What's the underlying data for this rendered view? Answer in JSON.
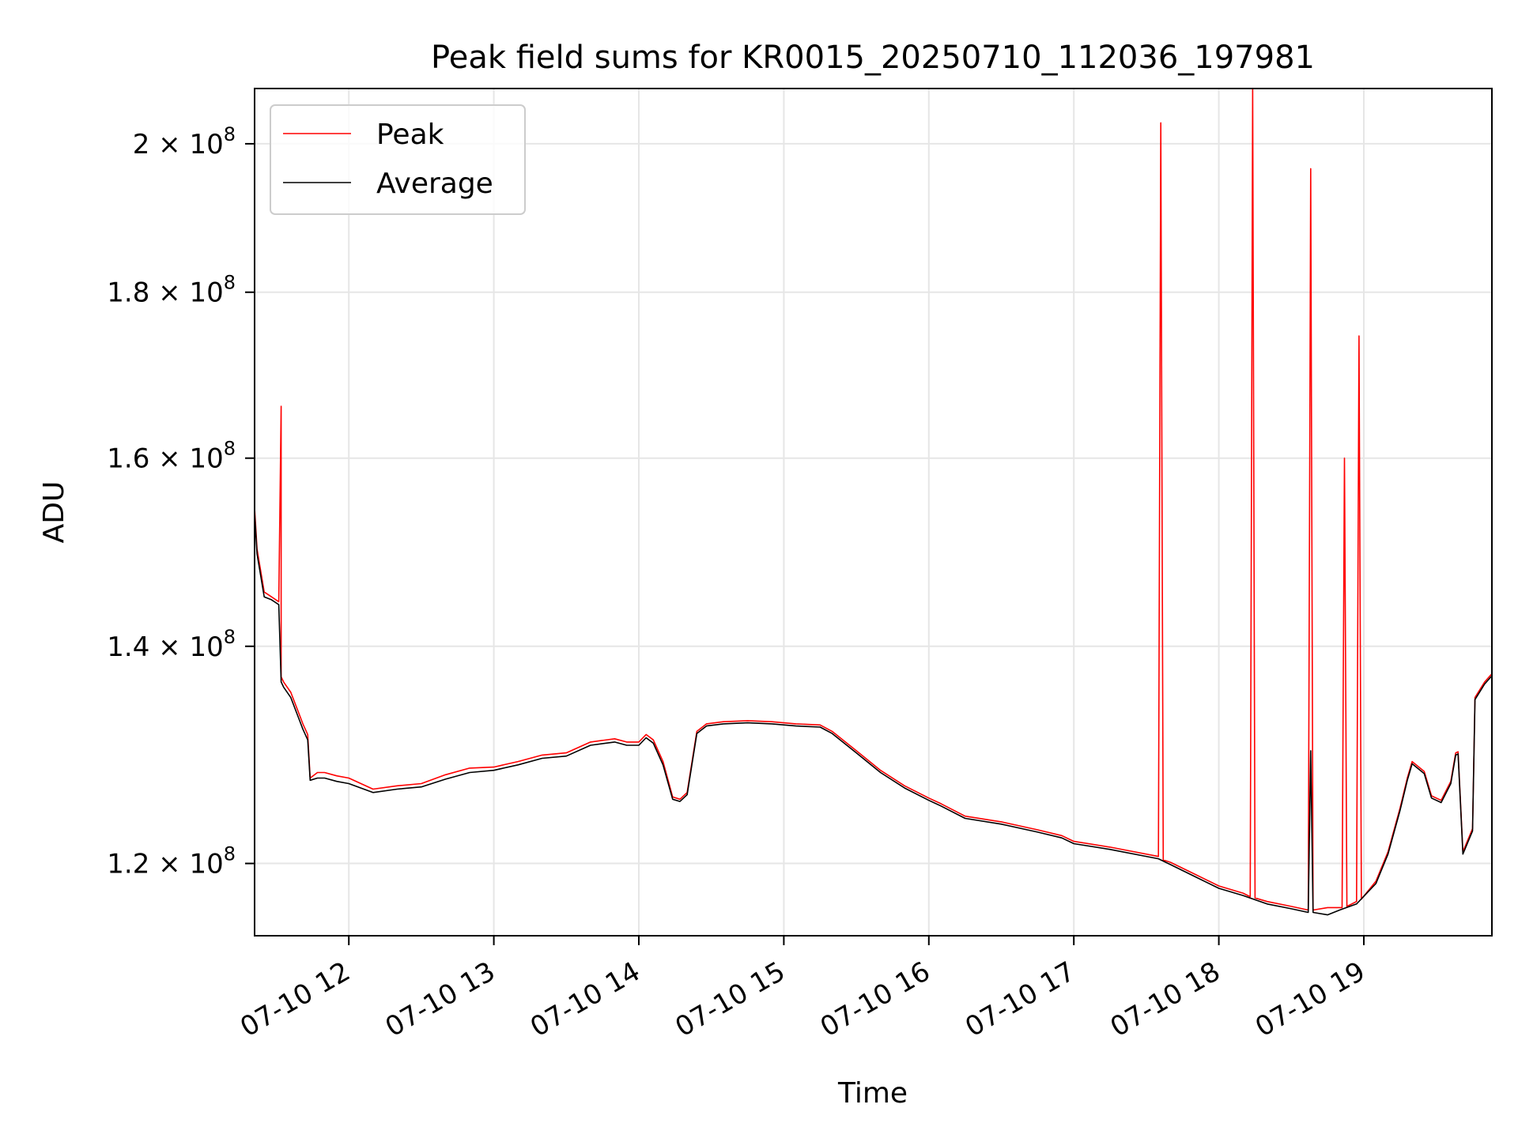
{
  "chart_data": {
    "type": "line",
    "title": "Peak field sums for KR0015_20250710_112036_197981",
    "xlabel": "Time",
    "ylabel": "ADU",
    "y_scale": "log",
    "grid": true,
    "legend_placement": "top-left",
    "xlim": [
      "2025-07-10 11:21",
      "2025-07-10 19:53"
    ],
    "ylim": [
      114000000,
      208000000
    ],
    "x_ticks": [
      {
        "value": "2025-07-10 12:00",
        "label": "07-10 12"
      },
      {
        "value": "2025-07-10 13:00",
        "label": "07-10 13"
      },
      {
        "value": "2025-07-10 14:00",
        "label": "07-10 14"
      },
      {
        "value": "2025-07-10 15:00",
        "label": "07-10 15"
      },
      {
        "value": "2025-07-10 16:00",
        "label": "07-10 16"
      },
      {
        "value": "2025-07-10 17:00",
        "label": "07-10 17"
      },
      {
        "value": "2025-07-10 18:00",
        "label": "07-10 18"
      },
      {
        "value": "2025-07-10 19:00",
        "label": "07-10 19"
      }
    ],
    "y_ticks": [
      {
        "value": 120000000,
        "mantissa": "1.2",
        "exponent": "8"
      },
      {
        "value": 140000000,
        "mantissa": "1.4",
        "exponent": "8"
      },
      {
        "value": 160000000,
        "mantissa": "1.6",
        "exponent": "8"
      },
      {
        "value": 180000000,
        "mantissa": "1.8",
        "exponent": "8"
      },
      {
        "value": 200000000,
        "mantissa": "2",
        "exponent": "8"
      }
    ],
    "series": [
      {
        "name": "Peak",
        "color": "#ff0000",
        "x": [
          "2025-07-10 11:21",
          "2025-07-10 11:22",
          "2025-07-10 11:25",
          "2025-07-10 11:28",
          "2025-07-10 11:31",
          "2025-07-10 11:32",
          "2025-07-10 11:32",
          "2025-07-10 11:33",
          "2025-07-10 11:36",
          "2025-07-10 11:41",
          "2025-07-10 11:43",
          "2025-07-10 11:44",
          "2025-07-10 11:47",
          "2025-07-10 11:50",
          "2025-07-10 11:55",
          "2025-07-10 12:00",
          "2025-07-10 12:05",
          "2025-07-10 12:10",
          "2025-07-10 12:20",
          "2025-07-10 12:30",
          "2025-07-10 12:40",
          "2025-07-10 12:50",
          "2025-07-10 13:00",
          "2025-07-10 13:10",
          "2025-07-10 13:20",
          "2025-07-10 13:30",
          "2025-07-10 13:40",
          "2025-07-10 13:50",
          "2025-07-10 13:55",
          "2025-07-10 14:00",
          "2025-07-10 14:03",
          "2025-07-10 14:06",
          "2025-07-10 14:10",
          "2025-07-10 14:14",
          "2025-07-10 14:17",
          "2025-07-10 14:20",
          "2025-07-10 14:24",
          "2025-07-10 14:28",
          "2025-07-10 14:35",
          "2025-07-10 14:45",
          "2025-07-10 14:55",
          "2025-07-10 15:05",
          "2025-07-10 15:15",
          "2025-07-10 15:20",
          "2025-07-10 15:30",
          "2025-07-10 15:40",
          "2025-07-10 15:50",
          "2025-07-10 16:00",
          "2025-07-10 16:05",
          "2025-07-10 16:15",
          "2025-07-10 16:30",
          "2025-07-10 16:45",
          "2025-07-10 16:55",
          "2025-07-10 17:00",
          "2025-07-10 17:15",
          "2025-07-10 17:35",
          "2025-07-10 17:36",
          "2025-07-10 17:37",
          "2025-07-10 17:40",
          "2025-07-10 17:50",
          "2025-07-10 18:00",
          "2025-07-10 18:10",
          "2025-07-10 18:13",
          "2025-07-10 18:14",
          "2025-07-10 18:15",
          "2025-07-10 18:20",
          "2025-07-10 18:30",
          "2025-07-10 18:37",
          "2025-07-10 18:38",
          "2025-07-10 18:39",
          "2025-07-10 18:45",
          "2025-07-10 18:51",
          "2025-07-10 18:52",
          "2025-07-10 18:53",
          "2025-07-10 18:57",
          "2025-07-10 18:58",
          "2025-07-10 18:59",
          "2025-07-10 19:05",
          "2025-07-10 19:10",
          "2025-07-10 19:15",
          "2025-07-10 19:18",
          "2025-07-10 19:20",
          "2025-07-10 19:25",
          "2025-07-10 19:28",
          "2025-07-10 19:32",
          "2025-07-10 19:36",
          "2025-07-10 19:38",
          "2025-07-10 19:39",
          "2025-07-10 19:41",
          "2025-07-10 19:45",
          "2025-07-10 19:46",
          "2025-07-10 19:50",
          "2025-07-10 19:53"
        ],
        "y": [
          154500000,
          150000000,
          145500000,
          145000000,
          144500000,
          166000000,
          137000000,
          136500000,
          135500000,
          132500000,
          131500000,
          127500000,
          128000000,
          128000000,
          127700000,
          127500000,
          127000000,
          126500000,
          126800000,
          127000000,
          127800000,
          128400000,
          128500000,
          129000000,
          129600000,
          129800000,
          130800000,
          131100000,
          130800000,
          130800000,
          131500000,
          131000000,
          129000000,
          125800000,
          125600000,
          126200000,
          131800000,
          132500000,
          132700000,
          132800000,
          132700000,
          132500000,
          132400000,
          131800000,
          130000000,
          128200000,
          126800000,
          125700000,
          125200000,
          124100000,
          123600000,
          122900000,
          122400000,
          121900000,
          121400000,
          120600000,
          203000000,
          120300000,
          120100000,
          119100000,
          118100000,
          117500000,
          117200000,
          208000000,
          117100000,
          116800000,
          116400000,
          116100000,
          196500000,
          116100000,
          116300000,
          116300000,
          160000000,
          116400000,
          116800000,
          174500000,
          117000000,
          118500000,
          121000000,
          124800000,
          127500000,
          129000000,
          128100000,
          125900000,
          125500000,
          127200000,
          129800000,
          129900000,
          121000000,
          123000000,
          135000000,
          136500000,
          137300000
        ]
      },
      {
        "name": "Average",
        "color": "#000000",
        "x": [
          "2025-07-10 11:21",
          "2025-07-10 11:22",
          "2025-07-10 11:25",
          "2025-07-10 11:28",
          "2025-07-10 11:31",
          "2025-07-10 11:32",
          "2025-07-10 11:33",
          "2025-07-10 11:36",
          "2025-07-10 11:41",
          "2025-07-10 11:43",
          "2025-07-10 11:44",
          "2025-07-10 11:47",
          "2025-07-10 11:50",
          "2025-07-10 11:55",
          "2025-07-10 12:00",
          "2025-07-10 12:05",
          "2025-07-10 12:10",
          "2025-07-10 12:20",
          "2025-07-10 12:30",
          "2025-07-10 12:40",
          "2025-07-10 12:50",
          "2025-07-10 13:00",
          "2025-07-10 13:10",
          "2025-07-10 13:20",
          "2025-07-10 13:30",
          "2025-07-10 13:40",
          "2025-07-10 13:50",
          "2025-07-10 13:55",
          "2025-07-10 14:00",
          "2025-07-10 14:03",
          "2025-07-10 14:06",
          "2025-07-10 14:10",
          "2025-07-10 14:14",
          "2025-07-10 14:17",
          "2025-07-10 14:20",
          "2025-07-10 14:24",
          "2025-07-10 14:28",
          "2025-07-10 14:35",
          "2025-07-10 14:45",
          "2025-07-10 14:55",
          "2025-07-10 15:05",
          "2025-07-10 15:15",
          "2025-07-10 15:20",
          "2025-07-10 15:30",
          "2025-07-10 15:40",
          "2025-07-10 15:50",
          "2025-07-10 16:00",
          "2025-07-10 16:05",
          "2025-07-10 16:15",
          "2025-07-10 16:30",
          "2025-07-10 16:45",
          "2025-07-10 16:55",
          "2025-07-10 17:00",
          "2025-07-10 17:15",
          "2025-07-10 17:35",
          "2025-07-10 17:40",
          "2025-07-10 17:50",
          "2025-07-10 18:00",
          "2025-07-10 18:10",
          "2025-07-10 18:20",
          "2025-07-10 18:30",
          "2025-07-10 18:37",
          "2025-07-10 18:38",
          "2025-07-10 18:39",
          "2025-07-10 18:45",
          "2025-07-10 18:50",
          "2025-07-10 18:57",
          "2025-07-10 19:05",
          "2025-07-10 19:10",
          "2025-07-10 19:15",
          "2025-07-10 19:18",
          "2025-07-10 19:20",
          "2025-07-10 19:25",
          "2025-07-10 19:28",
          "2025-07-10 19:32",
          "2025-07-10 19:36",
          "2025-07-10 19:38",
          "2025-07-10 19:39",
          "2025-07-10 19:41",
          "2025-07-10 19:45",
          "2025-07-10 19:46",
          "2025-07-10 19:50",
          "2025-07-10 19:53"
        ],
        "y": [
          154000000,
          149500000,
          145000000,
          144700000,
          144200000,
          136500000,
          136000000,
          135000000,
          132000000,
          131000000,
          127300000,
          127500000,
          127500000,
          127200000,
          127000000,
          126600000,
          126200000,
          126500000,
          126700000,
          127400000,
          128000000,
          128200000,
          128700000,
          129300000,
          129500000,
          130500000,
          130800000,
          130500000,
          130500000,
          131200000,
          130700000,
          128700000,
          125600000,
          125400000,
          126000000,
          131600000,
          132300000,
          132500000,
          132600000,
          132500000,
          132300000,
          132200000,
          131600000,
          129800000,
          128000000,
          126600000,
          125500000,
          125000000,
          123900000,
          123400000,
          122700000,
          122200000,
          121700000,
          121200000,
          120400000,
          119900000,
          118900000,
          117900000,
          117300000,
          116600000,
          116200000,
          115900000,
          130000000,
          115900000,
          115700000,
          116100000,
          116600000,
          118300000,
          120800000,
          124600000,
          127300000,
          128800000,
          127900000,
          125700000,
          125300000,
          127000000,
          129600000,
          129700000,
          120800000,
          122800000,
          134800000,
          136300000,
          137100000
        ]
      }
    ]
  }
}
